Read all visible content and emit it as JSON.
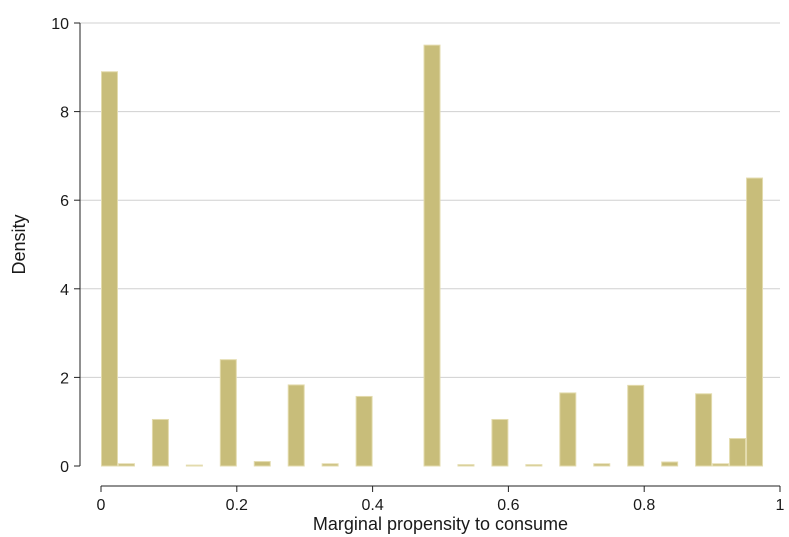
{
  "chart_data": {
    "type": "bar",
    "xlabel": "Marginal propensity to consume",
    "ylabel": "Density",
    "xlim": [
      0,
      1
    ],
    "ylim": [
      0,
      10
    ],
    "grid": "horizontal",
    "bar_color": "#c8bd7a",
    "bar_edge_color": "#e3dbad",
    "x_ticks": [
      "0",
      "0.2",
      "0.4",
      "0.6",
      "0.8",
      "1"
    ],
    "x_tick_values": [
      0,
      0.2,
      0.4,
      0.6,
      0.8,
      1
    ],
    "y_ticks": [
      "0",
      "2",
      "4",
      "6",
      "8",
      "10"
    ],
    "y_tick_values": [
      0,
      2,
      4,
      6,
      8,
      10
    ],
    "bin_width": 0.025,
    "x": [
      0.0125,
      0.0375,
      0.0625,
      0.0875,
      0.1125,
      0.1375,
      0.1625,
      0.1875,
      0.2125,
      0.2375,
      0.2625,
      0.2875,
      0.3125,
      0.3375,
      0.3625,
      0.3875,
      0.4125,
      0.4375,
      0.4625,
      0.4875,
      0.5125,
      0.5375,
      0.5625,
      0.5875,
      0.6125,
      0.6375,
      0.6625,
      0.6875,
      0.7125,
      0.7375,
      0.7625,
      0.7875,
      0.8125,
      0.8375,
      0.8625,
      0.8875,
      0.9125,
      0.9375,
      0.9625,
      0.9875
    ],
    "values": [
      8.9,
      0.05,
      0,
      1.05,
      0,
      0.02,
      0,
      2.4,
      0,
      0.1,
      0,
      1.83,
      0,
      0.05,
      0,
      1.57,
      0,
      0,
      0,
      9.5,
      0,
      0.03,
      0,
      1.05,
      0,
      0.03,
      0,
      1.65,
      0,
      0.05,
      0,
      1.82,
      0,
      0.09,
      0,
      1.63,
      0.05,
      0.62,
      6.5,
      0
    ]
  }
}
